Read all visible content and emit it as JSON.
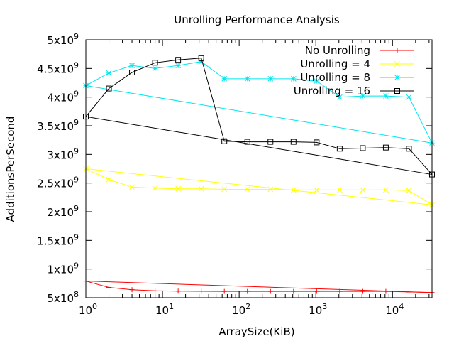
{
  "chart_data": {
    "type": "line",
    "title": "Unrolling Performance Analysis",
    "xlabel": "ArraySize(KiB)",
    "ylabel": "AdditionsPerSecond",
    "x_scale": "log",
    "xlim": [
      1,
      32768
    ],
    "ylim": [
      500000000,
      5000000000
    ],
    "grid": false,
    "legend_position": "top-right",
    "x_ticks": [
      {
        "value": 1,
        "mantissa": "10",
        "exp": "0"
      },
      {
        "value": 10,
        "mantissa": "10",
        "exp": "1"
      },
      {
        "value": 100,
        "mantissa": "10",
        "exp": "2"
      },
      {
        "value": 1000,
        "mantissa": "10",
        "exp": "3"
      },
      {
        "value": 10000,
        "mantissa": "10",
        "exp": "4"
      }
    ],
    "y_ticks": [
      {
        "value": 500000000,
        "mantissa": "5x10",
        "exp": "8"
      },
      {
        "value": 1000000000,
        "mantissa": "1x10",
        "exp": "9"
      },
      {
        "value": 1500000000,
        "mantissa": "1.5x10",
        "exp": "9"
      },
      {
        "value": 2000000000,
        "mantissa": "2x10",
        "exp": "9"
      },
      {
        "value": 2500000000,
        "mantissa": "2.5x10",
        "exp": "9"
      },
      {
        "value": 3000000000,
        "mantissa": "3x10",
        "exp": "9"
      },
      {
        "value": 3500000000,
        "mantissa": "3.5x10",
        "exp": "9"
      },
      {
        "value": 4000000000,
        "mantissa": "4x10",
        "exp": "9"
      },
      {
        "value": 4500000000,
        "mantissa": "4.5x10",
        "exp": "9"
      },
      {
        "value": 5000000000,
        "mantissa": "5x10",
        "exp": "9"
      }
    ],
    "x": [
      1,
      2,
      4,
      8,
      16,
      32,
      64,
      128,
      256,
      512,
      1024,
      2048,
      4096,
      8192,
      16384,
      32768
    ],
    "series": [
      {
        "name": "No Unrolling",
        "color": "#ff0000",
        "marker": "plus",
        "values": [
          790000000,
          680000000,
          640000000,
          620000000,
          615000000,
          612000000,
          610000000,
          610000000,
          610000000,
          610000000,
          610000000,
          610000000,
          610000000,
          610000000,
          600000000,
          590000000
        ]
      },
      {
        "name": "Unrolling = 4",
        "color": "#ffff00",
        "marker": "cross",
        "values": [
          2750000000,
          2560000000,
          2430000000,
          2410000000,
          2400000000,
          2400000000,
          2390000000,
          2390000000,
          2390000000,
          2380000000,
          2380000000,
          2380000000,
          2380000000,
          2380000000,
          2370000000,
          2120000000
        ]
      },
      {
        "name": "Unrolling = 8",
        "color": "#00e5ee",
        "marker": "star",
        "values": [
          4200000000,
          4420000000,
          4550000000,
          4500000000,
          4550000000,
          4620000000,
          4320000000,
          4320000000,
          4320000000,
          4320000000,
          4280000000,
          4000000000,
          4020000000,
          4020000000,
          4000000000,
          3200000000
        ]
      },
      {
        "name": "Unrolling = 16",
        "color": "#000000",
        "marker": "square",
        "values": [
          3660000000,
          4150000000,
          4430000000,
          4600000000,
          4650000000,
          4680000000,
          3230000000,
          3220000000,
          3220000000,
          3220000000,
          3210000000,
          3100000000,
          3110000000,
          3120000000,
          3100000000,
          2650000000
        ]
      }
    ]
  }
}
